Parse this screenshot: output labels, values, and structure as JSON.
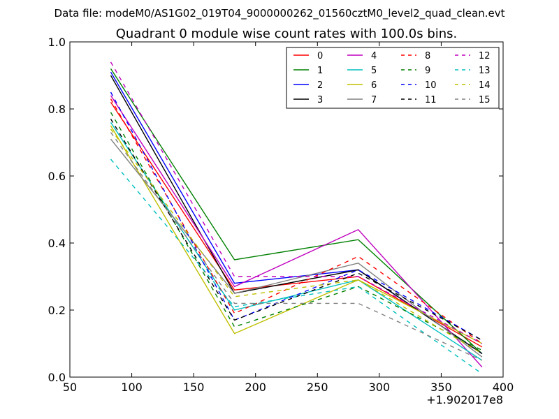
{
  "chart_data": {
    "type": "line",
    "suptitle": "Data file: modeM0/AS1G02_019T04_9000000262_01560cztM0_level2_quad_clean.evt",
    "title": "Quadrant 0 module wise count rates with 100.0s bins.",
    "xlabel": "",
    "ylabel": "",
    "x_offset_label": "+1.902017e8",
    "xlim": [
      50,
      400
    ],
    "ylim": [
      0.0,
      1.0
    ],
    "x_ticks": [
      "50",
      "100",
      "150",
      "200",
      "250",
      "300",
      "350",
      "400"
    ],
    "y_ticks": [
      "0.0",
      "0.2",
      "0.4",
      "0.6",
      "0.8",
      "1.0"
    ],
    "grid": false,
    "legend_placement": "top-right",
    "x": [
      83,
      183,
      283,
      383
    ],
    "series": [
      {
        "name": "0",
        "color": "#ff0000",
        "dash": "solid",
        "values": [
          0.82,
          0.26,
          0.3,
          0.09
        ]
      },
      {
        "name": "1",
        "color": "#008000",
        "dash": "solid",
        "values": [
          0.92,
          0.35,
          0.41,
          0.07
        ]
      },
      {
        "name": "2",
        "color": "#0000ff",
        "dash": "solid",
        "values": [
          0.91,
          0.28,
          0.32,
          0.07
        ]
      },
      {
        "name": "3",
        "color": "#000000",
        "dash": "solid",
        "values": [
          0.9,
          0.25,
          0.32,
          0.07
        ]
      },
      {
        "name": "4",
        "color": "#bf00bf",
        "dash": "solid",
        "values": [
          0.84,
          0.27,
          0.44,
          0.03
        ]
      },
      {
        "name": "5",
        "color": "#00bfbf",
        "dash": "solid",
        "values": [
          0.76,
          0.2,
          0.29,
          0.05
        ]
      },
      {
        "name": "6",
        "color": "#bfbf00",
        "dash": "solid",
        "values": [
          0.75,
          0.13,
          0.29,
          0.1
        ]
      },
      {
        "name": "7",
        "color": "#808080",
        "dash": "solid",
        "values": [
          0.71,
          0.25,
          0.34,
          0.06
        ]
      },
      {
        "name": "8",
        "color": "#ff0000",
        "dash": "dashed",
        "values": [
          0.83,
          0.19,
          0.36,
          0.1
        ]
      },
      {
        "name": "9",
        "color": "#008000",
        "dash": "dashed",
        "values": [
          0.79,
          0.15,
          0.27,
          0.08
        ]
      },
      {
        "name": "10",
        "color": "#0000ff",
        "dash": "dashed",
        "values": [
          0.85,
          0.17,
          0.32,
          0.11
        ]
      },
      {
        "name": "11",
        "color": "#000000",
        "dash": "dashed",
        "values": [
          0.77,
          0.17,
          0.31,
          0.11
        ]
      },
      {
        "name": "12",
        "color": "#bf00bf",
        "dash": "dashed",
        "values": [
          0.94,
          0.3,
          0.3,
          0.1
        ]
      },
      {
        "name": "13",
        "color": "#00bfbf",
        "dash": "dashed",
        "values": [
          0.65,
          0.21,
          0.27,
          0.01
        ]
      },
      {
        "name": "14",
        "color": "#bfbf00",
        "dash": "dashed",
        "values": [
          0.74,
          0.24,
          0.29,
          0.07
        ]
      },
      {
        "name": "15",
        "color": "#808080",
        "dash": "dashed",
        "values": [
          0.73,
          0.22,
          0.22,
          0.05
        ]
      }
    ]
  }
}
